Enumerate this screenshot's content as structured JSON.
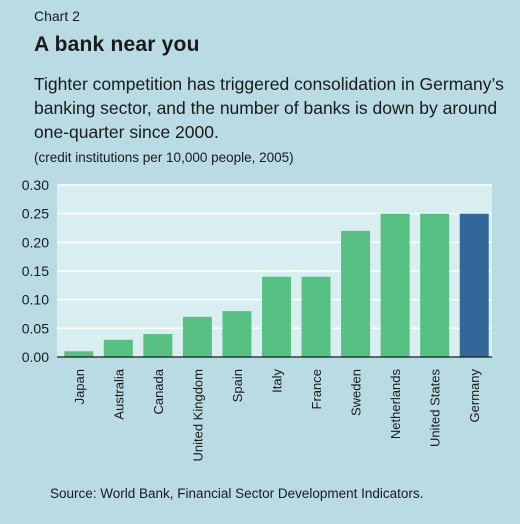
{
  "header": {
    "chart_number": "Chart 2",
    "title": "A bank near you",
    "subtitle": "Tighter competition has triggered consolidation in Germany’s banking sector, and the number of banks is down by around one-quarter since 2000.",
    "note": "(credit institutions per 10,000 people, 2005)"
  },
  "footer": {
    "source": "Source: World Bank, Financial Sector Development Indicators."
  },
  "colors": {
    "background": "#b9dbe4",
    "plot_background": "#d9eef1",
    "bar": "#57c183",
    "highlight_bar": "#336699",
    "gridline": "#ffffff"
  },
  "chart_data": {
    "type": "bar",
    "categories": [
      "Japan",
      "Australia",
      "Canada",
      "United Kingdom",
      "Spain",
      "Italy",
      "France",
      "Sweden",
      "Netherlands",
      "United States",
      "Germany"
    ],
    "values": [
      0.01,
      0.03,
      0.04,
      0.07,
      0.08,
      0.14,
      0.14,
      0.22,
      0.25,
      0.25,
      0.25
    ],
    "highlight": "Germany",
    "ylim": [
      0,
      0.3
    ],
    "yticks": [
      "0.00",
      "0.05",
      "0.10",
      "0.15",
      "0.20",
      "0.25",
      "0.30"
    ],
    "grid": true
  }
}
